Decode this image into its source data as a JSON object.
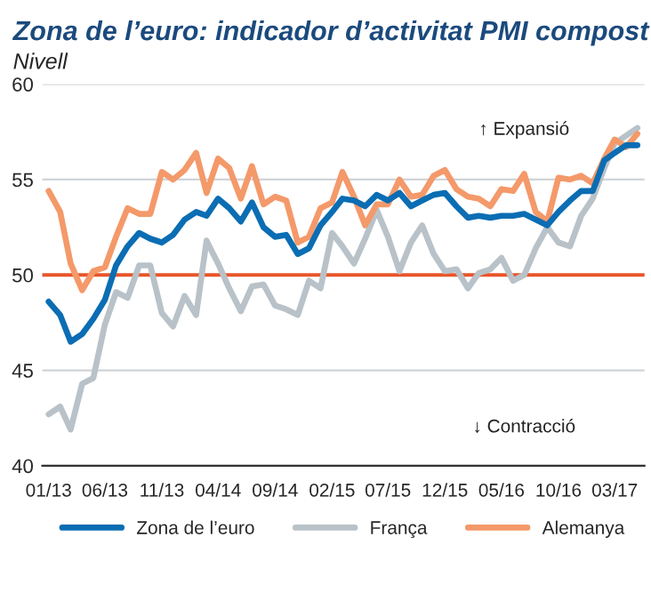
{
  "chart_data": {
    "type": "line",
    "title": "Zona de l’euro: indicador d’activitat PMI compost",
    "subtitle": "Nivell",
    "x": [
      "2013-01",
      "2013-02",
      "2013-03",
      "2013-04",
      "2013-05",
      "2013-06",
      "2013-07",
      "2013-08",
      "2013-09",
      "2013-10",
      "2013-11",
      "2013-12",
      "2014-01",
      "2014-02",
      "2014-03",
      "2014-04",
      "2014-05",
      "2014-06",
      "2014-07",
      "2014-08",
      "2014-09",
      "2014-10",
      "2014-11",
      "2014-12",
      "2015-01",
      "2015-02",
      "2015-03",
      "2015-04",
      "2015-05",
      "2015-06",
      "2015-07",
      "2015-08",
      "2015-09",
      "2015-10",
      "2015-11",
      "2015-12",
      "2016-01",
      "2016-02",
      "2016-03",
      "2016-04",
      "2016-05",
      "2016-06",
      "2016-07",
      "2016-08",
      "2016-09",
      "2016-10",
      "2016-11",
      "2016-12",
      "2017-01",
      "2017-02",
      "2017-03",
      "2017-04",
      "2017-05"
    ],
    "series": [
      {
        "name": "Zona de l’euro",
        "color": "#0b6db3",
        "values": [
          48.6,
          47.9,
          46.5,
          46.9,
          47.7,
          48.7,
          50.5,
          51.5,
          52.2,
          51.9,
          51.7,
          52.1,
          52.9,
          53.3,
          53.1,
          54.0,
          53.5,
          52.8,
          53.8,
          52.5,
          52.0,
          52.1,
          51.1,
          51.4,
          52.6,
          53.3,
          54.0,
          53.9,
          53.6,
          54.2,
          53.9,
          54.3,
          53.6,
          53.9,
          54.2,
          54.3,
          53.6,
          53.0,
          53.1,
          53.0,
          53.1,
          53.1,
          53.2,
          52.9,
          52.6,
          53.3,
          53.9,
          54.4,
          54.4,
          56.0,
          56.4,
          56.8,
          56.8
        ]
      },
      {
        "name": "França",
        "color": "#b8c2c8",
        "values": [
          42.7,
          43.1,
          41.9,
          44.3,
          44.6,
          47.4,
          49.1,
          48.8,
          50.5,
          50.5,
          48.0,
          47.3,
          48.9,
          47.9,
          51.8,
          50.6,
          49.3,
          48.1,
          49.4,
          49.5,
          48.4,
          48.2,
          47.9,
          49.7,
          49.3,
          52.2,
          51.5,
          50.6,
          51.9,
          53.4,
          52.0,
          50.2,
          51.7,
          52.6,
          51.1,
          50.2,
          50.3,
          49.3,
          50.1,
          50.3,
          50.9,
          49.7,
          50.0,
          51.4,
          52.5,
          51.7,
          51.5,
          53.1,
          54.0,
          55.6,
          56.9,
          57.3,
          57.7
        ]
      },
      {
        "name": "Alemanya",
        "color": "#f4996a",
        "values": [
          54.4,
          53.3,
          50.6,
          49.2,
          50.2,
          50.4,
          52.0,
          53.5,
          53.2,
          53.2,
          55.4,
          55.0,
          55.5,
          56.4,
          54.3,
          56.1,
          55.6,
          54.0,
          55.7,
          53.7,
          54.1,
          53.9,
          51.7,
          52.0,
          53.5,
          53.8,
          55.4,
          54.1,
          52.6,
          53.7,
          53.7,
          55.0,
          54.1,
          54.2,
          55.2,
          55.5,
          54.5,
          54.1,
          54.0,
          53.6,
          54.5,
          54.4,
          55.3,
          53.3,
          52.8,
          55.1,
          55.0,
          55.2,
          54.8,
          56.1,
          57.1,
          56.7,
          57.4
        ]
      }
    ],
    "xlim": [
      "2012-12-15",
      "2017-05-20"
    ],
    "xticks": [
      {
        "value": "2013-01",
        "label": "01/13"
      },
      {
        "value": "2013-06",
        "label": "06/13"
      },
      {
        "value": "2013-11",
        "label": "11/13"
      },
      {
        "value": "2014-04",
        "label": "04/14"
      },
      {
        "value": "2014-09",
        "label": "09/14"
      },
      {
        "value": "2015-02",
        "label": "02/15"
      },
      {
        "value": "2015-07",
        "label": "07/15"
      },
      {
        "value": "2015-12",
        "label": "12/15"
      },
      {
        "value": "2016-05",
        "label": "05/16"
      },
      {
        "value": "2016-10",
        "label": "10/16"
      },
      {
        "value": "2017-03",
        "label": "03/17"
      }
    ],
    "ylim": [
      40,
      60
    ],
    "yticks": [
      40,
      45,
      50,
      55,
      60
    ],
    "grid": "y",
    "legend": "bottom",
    "line_style": "solid",
    "marker": "none",
    "ref_lines": [
      {
        "axis": "y",
        "value": 50,
        "color": "#e8552a"
      }
    ],
    "annotations": [
      "↑ Expansió",
      "↓ Contracció"
    ]
  }
}
